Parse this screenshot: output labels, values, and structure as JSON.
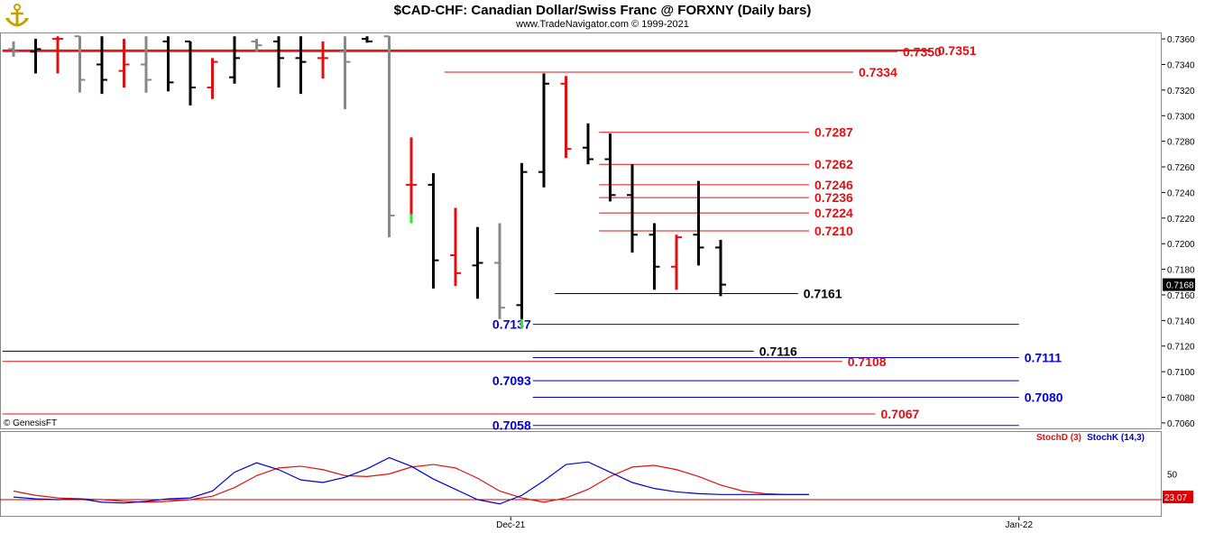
{
  "header": {
    "title": "$CAD-CHF:  Canadian Dollar/Swiss Franc @ FORXNY  (Daily bars)",
    "subtitle": "www.TradeNavigator.com © 1999-2021",
    "logo_icon": "anchor-icon"
  },
  "watermark": "© GenesisFT",
  "chart_data": [
    {
      "type": "ohlc",
      "y_axis": {
        "min": 0.7055,
        "max": 0.7365,
        "ticks": [
          "0.7360",
          "0.7340",
          "0.7320",
          "0.7300",
          "0.7280",
          "0.7260",
          "0.7240",
          "0.7220",
          "0.7200",
          "0.7180",
          "0.7160",
          "0.7140",
          "0.7120",
          "0.7100",
          "0.7080",
          "0.7060"
        ]
      },
      "x_axis": {
        "labels": [
          {
            "label": "Dec-21",
            "index": 22.5
          },
          {
            "label": "Jan-22",
            "index": 45.5
          }
        ]
      },
      "last_price": "0.7168",
      "bars": [
        {
          "o": 0.7352,
          "h": 0.7358,
          "l": 0.7346,
          "c": 0.735,
          "color": "gray"
        },
        {
          "o": 0.735,
          "h": 0.736,
          "l": 0.7333,
          "c": 0.7352,
          "color": "black"
        },
        {
          "o": 0.736,
          "h": 0.7362,
          "l": 0.7333,
          "c": 0.736,
          "color": "red"
        },
        {
          "o": 0.7362,
          "h": 0.7362,
          "l": 0.7318,
          "c": 0.7328,
          "color": "gray"
        },
        {
          "o": 0.734,
          "h": 0.7362,
          "l": 0.7317,
          "c": 0.7328,
          "color": "black"
        },
        {
          "o": 0.7335,
          "h": 0.736,
          "l": 0.7322,
          "c": 0.734,
          "color": "red"
        },
        {
          "o": 0.734,
          "h": 0.7362,
          "l": 0.7318,
          "c": 0.7328,
          "color": "gray"
        },
        {
          "o": 0.7358,
          "h": 0.7362,
          "l": 0.7319,
          "c": 0.7326,
          "color": "black"
        },
        {
          "o": 0.7358,
          "h": 0.7358,
          "l": 0.7308,
          "c": 0.7322,
          "color": "black"
        },
        {
          "o": 0.7322,
          "h": 0.7345,
          "l": 0.7313,
          "c": 0.7342,
          "color": "red"
        },
        {
          "o": 0.733,
          "h": 0.7362,
          "l": 0.7325,
          "c": 0.7345,
          "color": "black"
        },
        {
          "o": 0.7358,
          "h": 0.736,
          "l": 0.735,
          "c": 0.7355,
          "color": "gray"
        },
        {
          "o": 0.7358,
          "h": 0.7362,
          "l": 0.7322,
          "c": 0.7345,
          "color": "black"
        },
        {
          "o": 0.7345,
          "h": 0.7362,
          "l": 0.7317,
          "c": 0.7342,
          "color": "black"
        },
        {
          "o": 0.7345,
          "h": 0.7358,
          "l": 0.7329,
          "c": 0.7345,
          "color": "red"
        },
        {
          "o": 0.735,
          "h": 0.7362,
          "l": 0.7305,
          "c": 0.7342,
          "color": "gray"
        },
        {
          "o": 0.736,
          "h": 0.7362,
          "l": 0.7357,
          "c": 0.7358,
          "color": "black"
        },
        {
          "o": 0.7362,
          "h": 0.7362,
          "l": 0.7205,
          "c": 0.7222,
          "color": "gray"
        },
        {
          "o": 0.7246,
          "h": 0.7283,
          "l": 0.7223,
          "c": 0.7246,
          "color": "red",
          "low_mark": "green"
        },
        {
          "o": 0.7246,
          "h": 0.7255,
          "l": 0.7165,
          "c": 0.7187,
          "color": "black"
        },
        {
          "o": 0.7191,
          "h": 0.7228,
          "l": 0.7167,
          "c": 0.7177,
          "color": "red"
        },
        {
          "o": 0.7183,
          "h": 0.7213,
          "l": 0.7157,
          "c": 0.7185,
          "color": "black"
        },
        {
          "o": 0.7185,
          "h": 0.7216,
          "l": 0.7141,
          "c": 0.715,
          "color": "gray"
        },
        {
          "o": 0.7152,
          "h": 0.7263,
          "l": 0.7141,
          "c": 0.7256,
          "color": "black",
          "low_mark": "green"
        },
        {
          "o": 0.7256,
          "h": 0.7333,
          "l": 0.7244,
          "c": 0.7325,
          "color": "black"
        },
        {
          "o": 0.7325,
          "h": 0.7331,
          "l": 0.7267,
          "c": 0.7274,
          "color": "red"
        },
        {
          "o": 0.7275,
          "h": 0.7294,
          "l": 0.7262,
          "c": 0.7266,
          "color": "black"
        },
        {
          "o": 0.7266,
          "h": 0.7286,
          "l": 0.7233,
          "c": 0.7238,
          "color": "black"
        },
        {
          "o": 0.7238,
          "h": 0.7262,
          "l": 0.7193,
          "c": 0.7207,
          "color": "black"
        },
        {
          "o": 0.7207,
          "h": 0.7216,
          "l": 0.7164,
          "c": 0.7182,
          "color": "black"
        },
        {
          "o": 0.7182,
          "h": 0.7207,
          "l": 0.7164,
          "c": 0.7205,
          "color": "red"
        },
        {
          "o": 0.7207,
          "h": 0.7249,
          "l": 0.7183,
          "c": 0.7197,
          "color": "black"
        },
        {
          "o": 0.7197,
          "h": 0.7203,
          "l": 0.7159,
          "c": 0.7168,
          "color": "black"
        }
      ],
      "levels": [
        {
          "value": 0.7351,
          "label": "0.7351",
          "color": "red",
          "x_start": -0.5,
          "x_end": 41.5,
          "labeled": true
        },
        {
          "value": 0.735,
          "label": "0.7350",
          "color": "red",
          "x_start": -0.5,
          "x_end": 40,
          "labeled": true
        },
        {
          "value": 0.7334,
          "label": "0.7334",
          "color": "red",
          "x_start": 19.5,
          "x_end": 38,
          "labeled": true
        },
        {
          "value": 0.7287,
          "label": "0.7287",
          "color": "red",
          "x_start": 26.5,
          "x_end": 36,
          "labeled": true
        },
        {
          "value": 0.7262,
          "label": "0.7262",
          "color": "red",
          "x_start": 26.5,
          "x_end": 36,
          "labeled": true
        },
        {
          "value": 0.7246,
          "label": "0.7246",
          "color": "red",
          "x_start": 26.5,
          "x_end": 36,
          "labeled": true
        },
        {
          "value": 0.7236,
          "label": "0.7236",
          "color": "red",
          "x_start": 26.5,
          "x_end": 36,
          "labeled": true
        },
        {
          "value": 0.7224,
          "label": "0.7224",
          "color": "red",
          "x_start": 26.5,
          "x_end": 36,
          "labeled": true
        },
        {
          "value": 0.721,
          "label": "0.7210",
          "color": "red",
          "x_start": 26.5,
          "x_end": 36,
          "labeled": true
        },
        {
          "value": 0.7161,
          "label": "0.7161",
          "color": "black",
          "x_start": 24.5,
          "x_end": 35.5,
          "labeled": true
        },
        {
          "value": 0.7137,
          "label": "0.7137",
          "color": "blue",
          "x_start": 23.5,
          "x_end": 45.5,
          "labeled": true
        },
        {
          "value": 0.7116,
          "label": "0.7116",
          "color": "black",
          "x_start": -0.5,
          "x_end": 33.5,
          "labeled": true
        },
        {
          "value": 0.7111,
          "label": "0.7111",
          "color": "blue",
          "x_start": 23.5,
          "x_end": 45.5,
          "labeled": true
        },
        {
          "value": 0.7108,
          "label": "0.7108",
          "color": "red",
          "x_start": -0.5,
          "x_end": 37.5,
          "labeled": true
        },
        {
          "value": 0.7093,
          "label": "0.7093",
          "color": "blue",
          "x_start": 23.5,
          "x_end": 45.5,
          "labeled": true
        },
        {
          "value": 0.708,
          "label": "0.7080",
          "color": "blue",
          "x_start": 23.5,
          "x_end": 45.5,
          "labeled": true
        },
        {
          "value": 0.7067,
          "label": "0.7067",
          "color": "red",
          "x_start": -0.5,
          "x_end": 39,
          "labeled": true
        },
        {
          "value": 0.7058,
          "label": "0.7058",
          "color": "blue",
          "x_start": 23.5,
          "x_end": 45.5,
          "labeled": true
        }
      ]
    },
    {
      "type": "line",
      "indicator": "stochastic",
      "legend": [
        {
          "name": "StochD (3)",
          "color": "red"
        },
        {
          "name": "StochK (14,3)",
          "color": "blue"
        }
      ],
      "y_ticks": [
        "50"
      ],
      "reference_line": 20,
      "last_value": "23.07",
      "series": [
        {
          "name": "StochD (3)",
          "color": "red",
          "values": [
            30,
            25,
            22,
            21,
            20,
            18,
            17,
            18,
            20,
            24,
            34,
            48,
            57,
            59,
            55,
            48,
            47,
            50,
            58,
            61,
            57,
            45,
            30,
            22,
            17,
            22,
            32,
            47,
            58,
            60,
            55,
            47,
            37,
            30,
            27,
            26,
            26
          ]
        },
        {
          "name": "StochK (14,3)",
          "color": "blue",
          "values": [
            23,
            21,
            20,
            21,
            17,
            16,
            18,
            21,
            22,
            30,
            52,
            63,
            55,
            43,
            40,
            46,
            56,
            69,
            59,
            44,
            32,
            20,
            15,
            25,
            42,
            61,
            64,
            52,
            40,
            33,
            29,
            27,
            26,
            26,
            26,
            26,
            26
          ]
        }
      ]
    }
  ]
}
